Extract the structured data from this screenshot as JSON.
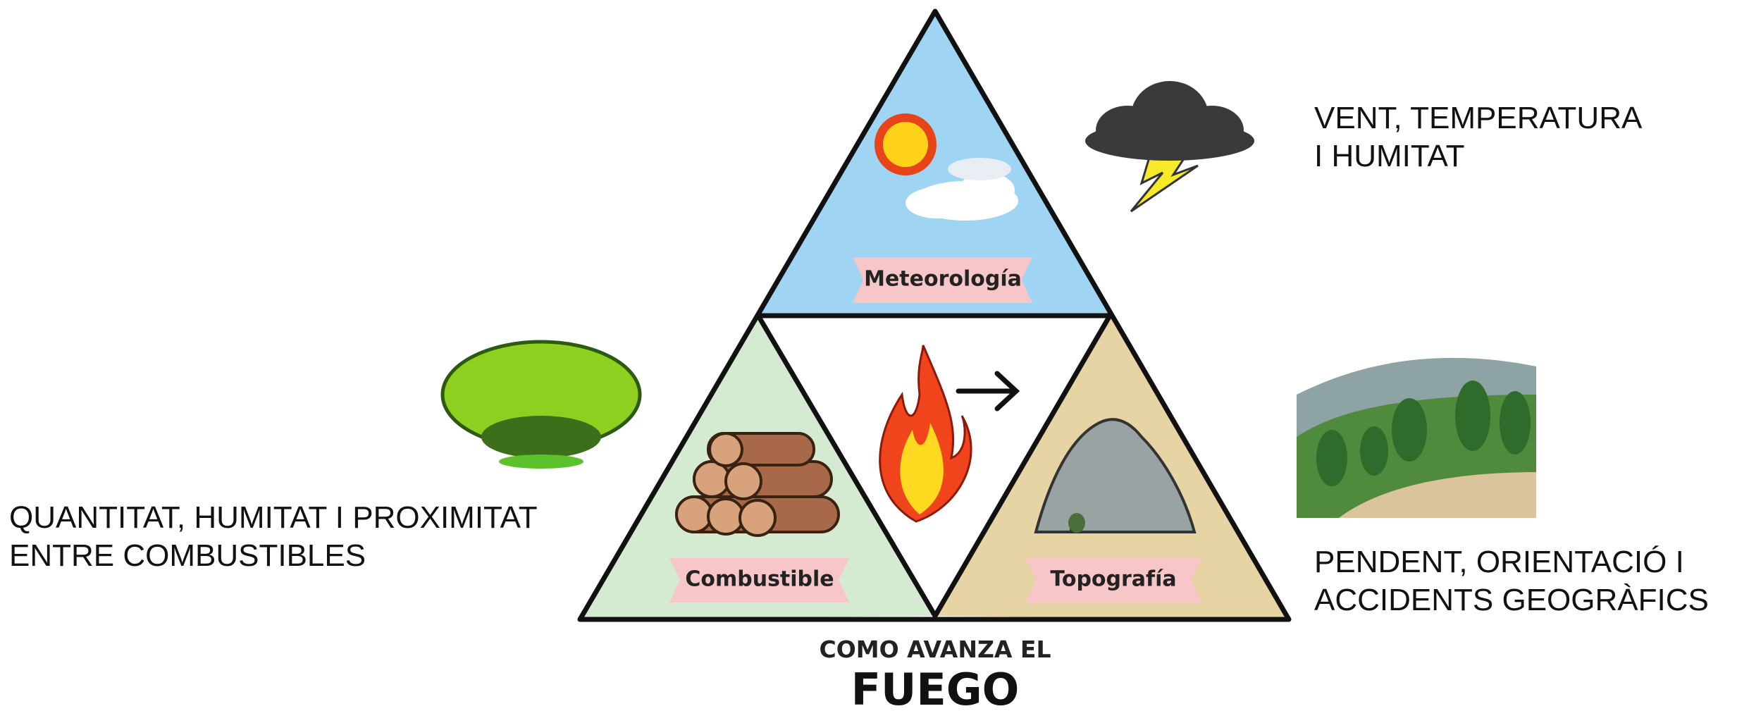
{
  "diagram": {
    "triangle_labels": {
      "top": "Meteorología",
      "left": "Combustible",
      "right": "Topografía"
    },
    "notes": {
      "weather": [
        "VENT, TEMPERATURA",
        "I HUMITAT"
      ],
      "fuel": [
        "QUANTITAT, HUMITAT I PROXIMITAT",
        "ENTRE COMBUSTIBLES"
      ],
      "terrain": [
        "PENDENT, ORIENTACIÓ I",
        "ACCIDENTS GEOGRÀFICS"
      ]
    },
    "caption": {
      "subtitle": "COMO AVANZA EL",
      "title": "FUEGO"
    }
  }
}
